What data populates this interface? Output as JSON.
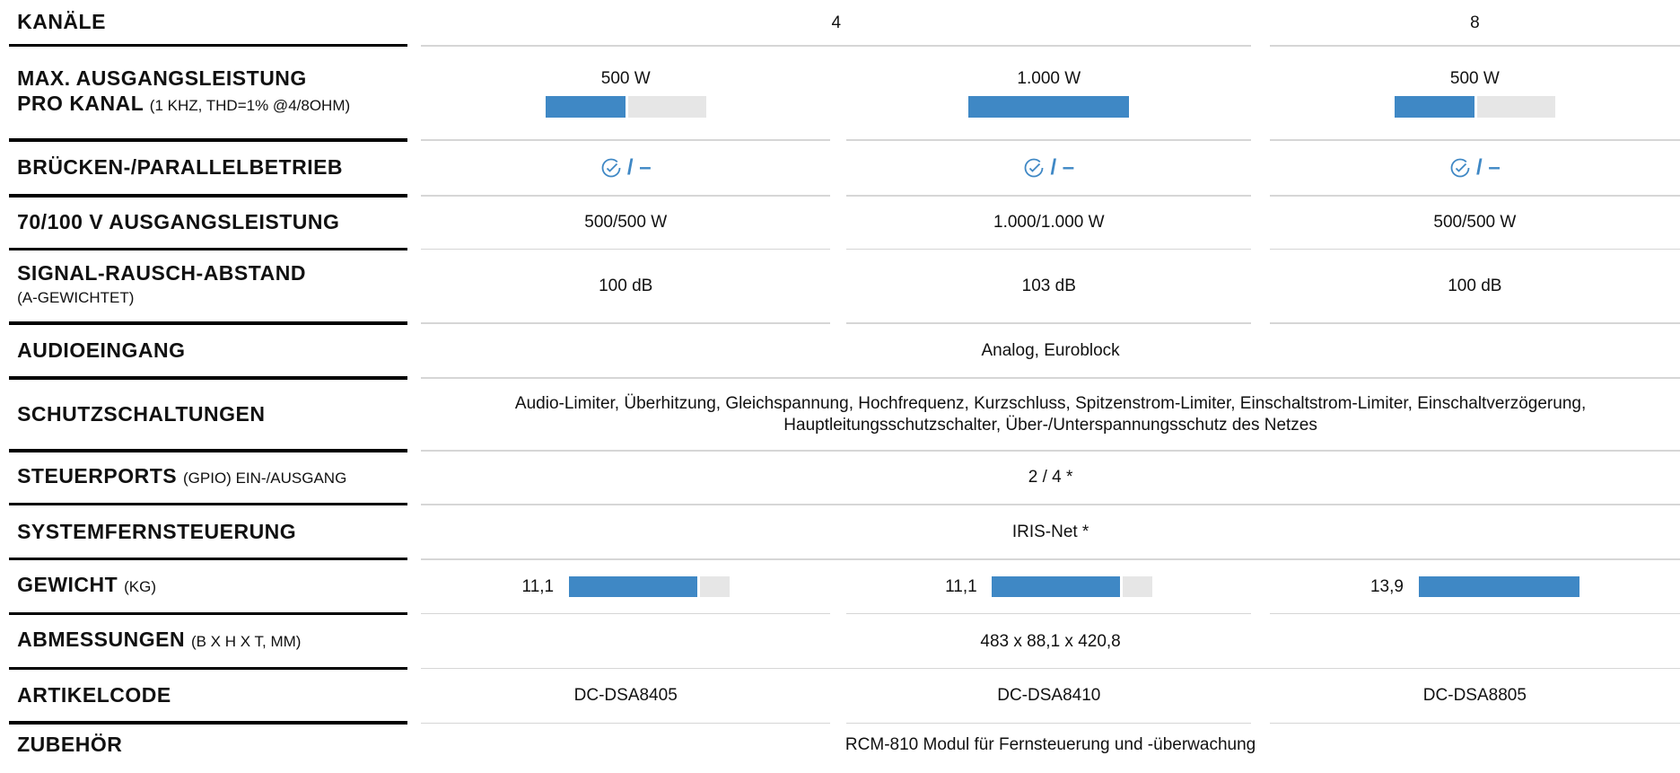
{
  "rows": [
    {
      "label": [
        "KANÄLE"
      ],
      "cells": [
        {
          "text": "4"
        },
        {
          "text": "8"
        }
      ]
    },
    {
      "label": [
        "MAX. AUSGANGSLEISTUNG",
        "PRO KANAL"
      ],
      "note": "(1 KHZ, THD=1% @4/8OHM)",
      "range": [
        0,
        1000
      ],
      "cells": [
        {
          "text": "500 W",
          "value": 500
        },
        {
          "text": "1.000 W",
          "value": 1000
        },
        {
          "text": "500 W",
          "value": 500
        }
      ]
    },
    {
      "label": [
        "BRÜCKEN-/PARALLELBETRIEB"
      ],
      "cells": [
        {
          "text": "/ –"
        },
        {
          "text": "/ –"
        },
        {
          "text": "/ –"
        }
      ]
    },
    {
      "label": [
        "70/100 V AUSGANGSLEISTUNG"
      ],
      "cells": [
        {
          "text": "500/500 W"
        },
        {
          "text": "1.000/1.000 W"
        },
        {
          "text": "500/500 W"
        }
      ]
    },
    {
      "label": [
        "SIGNAL-RAUSCH-ABSTAND"
      ],
      "sublabel": "(A-GEWICHTET)",
      "cells": [
        {
          "text": "100 dB"
        },
        {
          "text": "103 dB"
        },
        {
          "text": "100 dB"
        }
      ]
    },
    {
      "label": [
        "AUDIOEINGANG"
      ],
      "cells": [
        {
          "text": "Analog, Euroblock"
        }
      ]
    },
    {
      "label": [
        "SCHUTZSCHALTUNGEN"
      ],
      "cells": [
        {
          "text": "Audio-Limiter, Überhitzung, Gleichspannung, Hochfrequenz, Kurzschluss, Spitzenstrom-Limiter, Einschaltstrom-Limiter, Einschaltverzögerung, Hauptleitungsschutzschalter, Über-/Unterspannungsschutz des Netzes"
        }
      ]
    },
    {
      "label": [
        "STEUERPORTS"
      ],
      "note": "(GPIO) EIN-/AUSGANG",
      "cells": [
        {
          "text": "2 / 4 *"
        }
      ]
    },
    {
      "label": [
        "SYSTEMFERNSTEUERUNG"
      ],
      "cells": [
        {
          "text": "IRIS-Net *"
        }
      ]
    },
    {
      "label": [
        "GEWICHT"
      ],
      "note": "(KG)",
      "range": [
        0,
        13.9
      ],
      "cells": [
        {
          "text": "11,1",
          "value": 11.1
        },
        {
          "text": "11,1",
          "value": 11.1
        },
        {
          "text": "13,9",
          "value": 13.9
        }
      ]
    },
    {
      "label": [
        "ABMESSUNGEN"
      ],
      "note": "(B X H X T, MM)",
      "cells": [
        {
          "text": "483 x 88,1 x 420,8"
        }
      ]
    },
    {
      "label": [
        "ARTIKELCODE"
      ],
      "cells": [
        {
          "text": "DC-DSA8405"
        },
        {
          "text": "DC-DSA8410"
        },
        {
          "text": "DC-DSA8805"
        }
      ]
    },
    {
      "label": [
        "ZUBEHÖR"
      ],
      "cells": [
        {
          "text": "RCM-810 Modul für Fernsteuerung und -überwachung"
        }
      ]
    }
  ]
}
